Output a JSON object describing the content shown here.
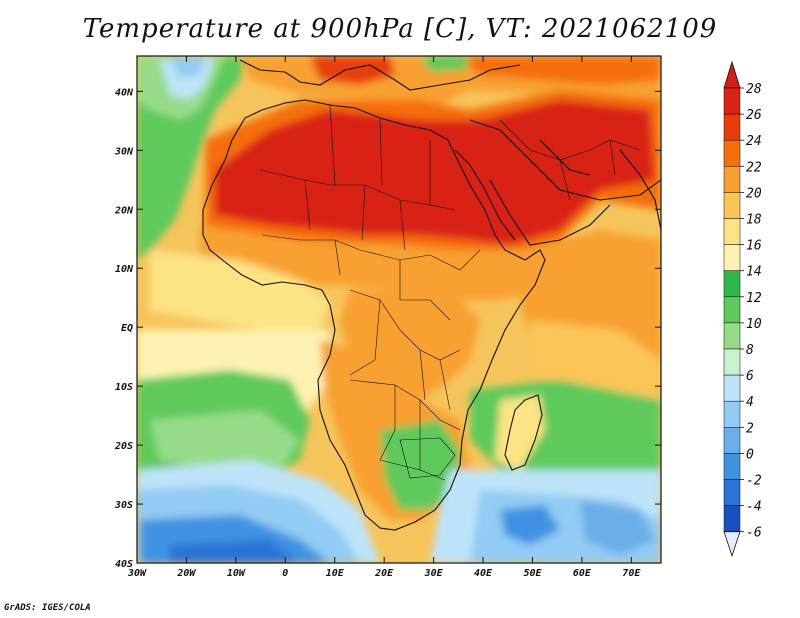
{
  "title": "Temperature at 900hPa [C], VT: 2021062109",
  "credit": "GrADS: IGES/COLA",
  "axes": {
    "x_ticks": [
      "30W",
      "20W",
      "10W",
      "0",
      "10E",
      "20E",
      "30E",
      "40E",
      "50E",
      "60E",
      "70E"
    ],
    "y_ticks": [
      "40N",
      "30N",
      "20N",
      "10N",
      "EQ",
      "10S",
      "20S",
      "30S",
      "40S"
    ]
  },
  "colorbar": {
    "levels": [
      "28",
      "26",
      "24",
      "22",
      "20",
      "18",
      "16",
      "14",
      "12",
      "10",
      "8",
      "6",
      "4",
      "2",
      "0",
      "-2",
      "-4",
      "-6"
    ],
    "colors": [
      "#d92414",
      "#e83c0a",
      "#f46e0a",
      "#f8a032",
      "#fac456",
      "#fce383",
      "#fdf2b4",
      "#2eb84a",
      "#5ec95c",
      "#96db89",
      "#c8f1cf",
      "#bde3f8",
      "#92cbf3",
      "#6aaee8",
      "#4193e2",
      "#2b73d6",
      "#1a4fc0",
      "#172a96",
      "#0b1a7a"
    ],
    "top_color": "#d21e16",
    "bottom_color": "#e6ebff"
  },
  "map": {
    "projection": "lat-lon",
    "extent": {
      "lon_min": -30,
      "lon_max": 76,
      "lat_min": -40,
      "lat_max": 46
    },
    "land_color_theme": "temperature shading"
  }
}
